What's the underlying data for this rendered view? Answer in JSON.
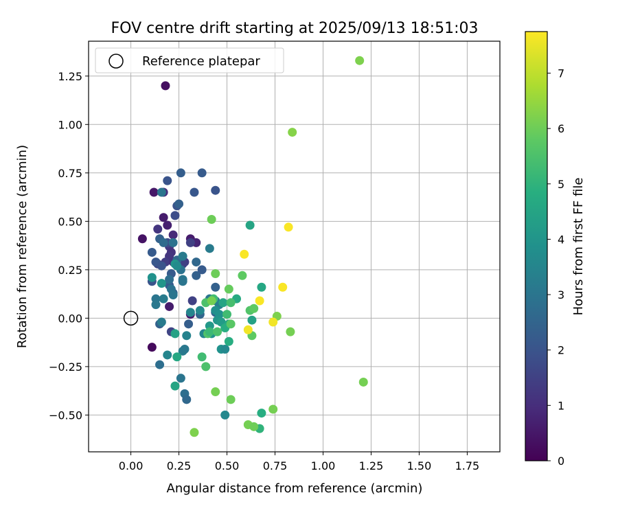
{
  "chart_data": {
    "type": "scatter",
    "title": "FOV centre drift starting at 2025/09/13 18:51:03",
    "xlabel": "Angular distance from reference (arcmin)",
    "ylabel": "Rotation from reference (arcmin)",
    "xlim": [
      -0.22,
      1.92
    ],
    "ylim": [
      -0.69,
      1.43
    ],
    "x_ticks": [
      0.0,
      0.25,
      0.5,
      0.75,
      1.0,
      1.25,
      1.5,
      1.75
    ],
    "x_tick_labels": [
      "0.00",
      "0.25",
      "0.50",
      "0.75",
      "1.00",
      "1.25",
      "1.50",
      "1.75"
    ],
    "y_ticks": [
      -0.5,
      -0.25,
      0.0,
      0.25,
      0.5,
      0.75,
      1.0,
      1.25
    ],
    "y_tick_labels": [
      "−0.50",
      "−0.25",
      "0.00",
      "0.25",
      "0.50",
      "0.75",
      "1.00",
      "1.25"
    ],
    "grid": true,
    "legend": {
      "position": "top-left",
      "label": "Reference platepar"
    },
    "reference_point": {
      "x": 0.0,
      "y": 0.0
    },
    "colorbar": {
      "label": "Hours from first FF file",
      "min": 0,
      "max": 7.75,
      "ticks": [
        0,
        1,
        2,
        3,
        4,
        5,
        6,
        7
      ],
      "tick_labels": [
        "0",
        "1",
        "2",
        "3",
        "4",
        "5",
        "6",
        "7"
      ],
      "colormap": "viridis"
    },
    "points": [
      {
        "x": 0.18,
        "y": 1.2,
        "h": 0.3
      },
      {
        "x": 0.06,
        "y": 0.41,
        "h": 0.4
      },
      {
        "x": 0.11,
        "y": -0.15,
        "h": 0.2
      },
      {
        "x": 0.12,
        "y": 0.65,
        "h": 0.5
      },
      {
        "x": 0.17,
        "y": 0.52,
        "h": 0.6
      },
      {
        "x": 0.19,
        "y": 0.48,
        "h": 0.7
      },
      {
        "x": 0.2,
        "y": 0.06,
        "h": 0.6
      },
      {
        "x": 0.31,
        "y": 0.41,
        "h": 0.6
      },
      {
        "x": 0.31,
        "y": 0.02,
        "h": 0.6
      },
      {
        "x": 0.17,
        "y": 0.65,
        "h": 1.0
      },
      {
        "x": 0.14,
        "y": 0.46,
        "h": 1.2
      },
      {
        "x": 0.22,
        "y": 0.43,
        "h": 0.9
      },
      {
        "x": 0.34,
        "y": 0.39,
        "h": 0.8
      },
      {
        "x": 0.2,
        "y": 0.37,
        "h": 1.3
      },
      {
        "x": 0.21,
        "y": 0.34,
        "h": 1.1
      },
      {
        "x": 0.2,
        "y": 0.32,
        "h": 1.2
      },
      {
        "x": 0.18,
        "y": 0.29,
        "h": 1.4
      },
      {
        "x": 0.22,
        "y": 0.29,
        "h": 1.1
      },
      {
        "x": 0.28,
        "y": 0.29,
        "h": 1.4
      },
      {
        "x": 0.27,
        "y": 0.28,
        "h": 1.5
      },
      {
        "x": 0.14,
        "y": 0.28,
        "h": 1.6
      },
      {
        "x": 0.32,
        "y": 0.09,
        "h": 1.5
      },
      {
        "x": 0.31,
        "y": 0.39,
        "h": 1.5
      },
      {
        "x": 0.21,
        "y": -0.07,
        "h": 1.6
      },
      {
        "x": 0.19,
        "y": 0.71,
        "h": 2.0
      },
      {
        "x": 0.24,
        "y": 0.58,
        "h": 2.0
      },
      {
        "x": 0.23,
        "y": 0.53,
        "h": 1.8
      },
      {
        "x": 0.26,
        "y": 0.75,
        "h": 2.3
      },
      {
        "x": 0.37,
        "y": 0.75,
        "h": 2.2
      },
      {
        "x": 0.33,
        "y": 0.65,
        "h": 2.1
      },
      {
        "x": 0.44,
        "y": 0.66,
        "h": 2.0
      },
      {
        "x": 0.25,
        "y": 0.59,
        "h": 2.4
      },
      {
        "x": 0.15,
        "y": 0.41,
        "h": 2.4
      },
      {
        "x": 0.19,
        "y": 0.39,
        "h": 1.8
      },
      {
        "x": 0.11,
        "y": 0.34,
        "h": 2.2
      },
      {
        "x": 0.13,
        "y": 0.29,
        "h": 2.1
      },
      {
        "x": 0.16,
        "y": 0.27,
        "h": 2.0
      },
      {
        "x": 0.21,
        "y": 0.23,
        "h": 2.2
      },
      {
        "x": 0.11,
        "y": 0.19,
        "h": 2.0
      },
      {
        "x": 0.2,
        "y": 0.17,
        "h": 2.2
      },
      {
        "x": 0.22,
        "y": 0.13,
        "h": 2.4
      },
      {
        "x": 0.24,
        "y": 0.3,
        "h": 2.6
      },
      {
        "x": 0.34,
        "y": 0.29,
        "h": 2.6
      },
      {
        "x": 0.34,
        "y": 0.22,
        "h": 2.4
      },
      {
        "x": 0.37,
        "y": 0.25,
        "h": 2.2
      },
      {
        "x": 0.44,
        "y": 0.16,
        "h": 2.4
      },
      {
        "x": 0.44,
        "y": 0.03,
        "h": 2.5
      },
      {
        "x": 0.36,
        "y": 0.02,
        "h": 2.5
      },
      {
        "x": 0.15,
        "y": -0.03,
        "h": 2.4
      },
      {
        "x": 0.3,
        "y": -0.03,
        "h": 2.3
      },
      {
        "x": 0.16,
        "y": 0.65,
        "h": 3.0
      },
      {
        "x": 0.17,
        "y": 0.39,
        "h": 2.7
      },
      {
        "x": 0.22,
        "y": 0.39,
        "h": 2.9
      },
      {
        "x": 0.27,
        "y": 0.32,
        "h": 3.2
      },
      {
        "x": 0.26,
        "y": 0.25,
        "h": 2.9
      },
      {
        "x": 0.2,
        "y": 0.2,
        "h": 2.8
      },
      {
        "x": 0.27,
        "y": 0.2,
        "h": 3.1
      },
      {
        "x": 0.27,
        "y": 0.19,
        "h": 3.0
      },
      {
        "x": 0.21,
        "y": 0.15,
        "h": 2.9
      },
      {
        "x": 0.22,
        "y": 0.12,
        "h": 3.0
      },
      {
        "x": 0.13,
        "y": 0.1,
        "h": 3.0
      },
      {
        "x": 0.17,
        "y": 0.1,
        "h": 3.2
      },
      {
        "x": 0.13,
        "y": 0.07,
        "h": 3.1
      },
      {
        "x": 0.41,
        "y": 0.36,
        "h": 3.2
      },
      {
        "x": 0.44,
        "y": 0.09,
        "h": 3.1
      },
      {
        "x": 0.41,
        "y": 0.1,
        "h": 3.0
      },
      {
        "x": 0.46,
        "y": 0.07,
        "h": 3.3
      },
      {
        "x": 0.16,
        "y": -0.02,
        "h": 3.2
      },
      {
        "x": 0.29,
        "y": -0.09,
        "h": 3.4
      },
      {
        "x": 0.15,
        "y": -0.24,
        "h": 2.8
      },
      {
        "x": 0.26,
        "y": -0.31,
        "h": 3.0
      },
      {
        "x": 0.28,
        "y": -0.39,
        "h": 2.8
      },
      {
        "x": 0.29,
        "y": -0.42,
        "h": 2.6
      },
      {
        "x": 0.27,
        "y": -0.17,
        "h": 3.2
      },
      {
        "x": 0.28,
        "y": -0.16,
        "h": 3.1
      },
      {
        "x": 0.19,
        "y": -0.19,
        "h": 3.5
      },
      {
        "x": 0.31,
        "y": 0.03,
        "h": 3.5
      },
      {
        "x": 0.36,
        "y": 0.04,
        "h": 3.6
      },
      {
        "x": 0.38,
        "y": -0.08,
        "h": 3.5
      },
      {
        "x": 0.11,
        "y": 0.21,
        "h": 3.9
      },
      {
        "x": 0.16,
        "y": 0.18,
        "h": 4.0
      },
      {
        "x": 0.23,
        "y": 0.28,
        "h": 4.0
      },
      {
        "x": 0.24,
        "y": 0.27,
        "h": 3.7
      },
      {
        "x": 0.44,
        "y": 0.04,
        "h": 3.8
      },
      {
        "x": 0.46,
        "y": 0.02,
        "h": 3.9
      },
      {
        "x": 0.45,
        "y": -0.01,
        "h": 4.0
      },
      {
        "x": 0.47,
        "y": -0.02,
        "h": 4.2
      },
      {
        "x": 0.41,
        "y": -0.04,
        "h": 4.1
      },
      {
        "x": 0.42,
        "y": -0.08,
        "h": 3.9
      },
      {
        "x": 0.47,
        "y": -0.16,
        "h": 3.9
      },
      {
        "x": 0.49,
        "y": -0.16,
        "h": 3.6
      },
      {
        "x": 0.49,
        "y": -0.5,
        "h": 3.6
      },
      {
        "x": 0.23,
        "y": -0.08,
        "h": 4.4
      },
      {
        "x": 0.24,
        "y": -0.2,
        "h": 4.6
      },
      {
        "x": 0.23,
        "y": -0.35,
        "h": 4.5
      },
      {
        "x": 0.62,
        "y": 0.48,
        "h": 4.5
      },
      {
        "x": 0.68,
        "y": 0.16,
        "h": 4.6
      },
      {
        "x": 0.55,
        "y": 0.1,
        "h": 4.7
      },
      {
        "x": 0.48,
        "y": 0.08,
        "h": 4.5
      },
      {
        "x": 0.51,
        "y": -0.03,
        "h": 4.6
      },
      {
        "x": 0.49,
        "y": -0.05,
        "h": 4.8
      },
      {
        "x": 0.51,
        "y": -0.12,
        "h": 4.8
      },
      {
        "x": 0.63,
        "y": -0.01,
        "h": 4.4
      },
      {
        "x": 0.68,
        "y": -0.49,
        "h": 4.8
      },
      {
        "x": 0.67,
        "y": -0.57,
        "h": 5.0
      },
      {
        "x": 0.37,
        "y": -0.2,
        "h": 5.3
      },
      {
        "x": 0.39,
        "y": -0.25,
        "h": 5.5
      },
      {
        "x": 0.4,
        "y": -0.08,
        "h": 5.6
      },
      {
        "x": 0.41,
        "y": -0.07,
        "h": 5.2
      },
      {
        "x": 0.39,
        "y": 0.08,
        "h": 5.5
      },
      {
        "x": 0.43,
        "y": 0.1,
        "h": 5.3
      },
      {
        "x": 0.45,
        "y": -0.07,
        "h": 5.5
      },
      {
        "x": 0.5,
        "y": 0.02,
        "h": 5.3
      },
      {
        "x": 0.52,
        "y": 0.08,
        "h": 5.4
      },
      {
        "x": 0.52,
        "y": -0.03,
        "h": 5.7
      },
      {
        "x": 0.62,
        "y": 0.04,
        "h": 5.6
      },
      {
        "x": 0.63,
        "y": -0.09,
        "h": 5.8
      },
      {
        "x": 0.64,
        "y": 0.05,
        "h": 5.8
      },
      {
        "x": 0.58,
        "y": 0.22,
        "h": 5.8
      },
      {
        "x": 0.51,
        "y": 0.15,
        "h": 5.9
      },
      {
        "x": 0.44,
        "y": 0.23,
        "h": 6.0
      },
      {
        "x": 0.42,
        "y": 0.09,
        "h": 6.1
      },
      {
        "x": 0.42,
        "y": 0.51,
        "h": 6.0
      },
      {
        "x": 0.44,
        "y": -0.38,
        "h": 6.1
      },
      {
        "x": 0.52,
        "y": -0.42,
        "h": 6.0
      },
      {
        "x": 0.61,
        "y": -0.55,
        "h": 6.1
      },
      {
        "x": 0.64,
        "y": -0.56,
        "h": 6.0
      },
      {
        "x": 0.74,
        "y": -0.47,
        "h": 6.1
      },
      {
        "x": 0.33,
        "y": -0.59,
        "h": 6.2
      },
      {
        "x": 0.76,
        "y": 0.01,
        "h": 6.2
      },
      {
        "x": 0.83,
        "y": -0.07,
        "h": 6.1
      },
      {
        "x": 0.84,
        "y": 0.96,
        "h": 6.3
      },
      {
        "x": 1.19,
        "y": 1.33,
        "h": 6.2
      },
      {
        "x": 1.21,
        "y": -0.33,
        "h": 6.1
      },
      {
        "x": 0.59,
        "y": 0.33,
        "h": 7.7
      },
      {
        "x": 0.61,
        "y": -0.06,
        "h": 7.6
      },
      {
        "x": 0.67,
        "y": 0.09,
        "h": 7.7
      },
      {
        "x": 0.74,
        "y": -0.02,
        "h": 7.6
      },
      {
        "x": 0.79,
        "y": 0.16,
        "h": 7.7
      },
      {
        "x": 0.82,
        "y": 0.47,
        "h": 7.7
      }
    ]
  }
}
